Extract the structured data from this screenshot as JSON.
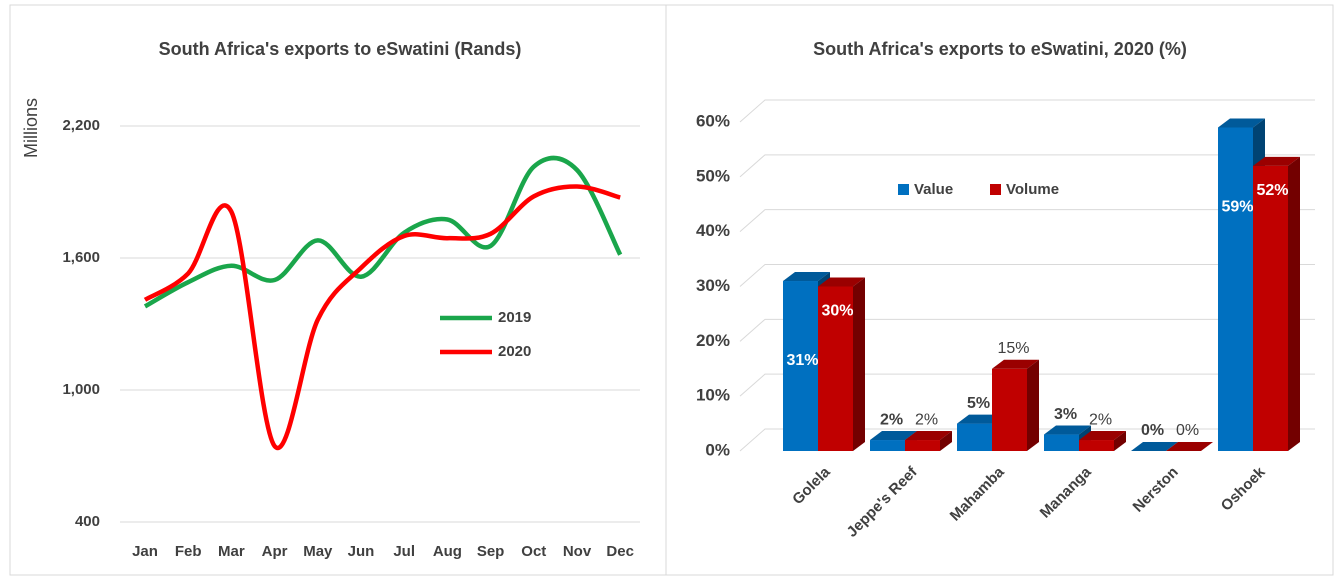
{
  "chart_data": [
    {
      "type": "line",
      "title": "South Africa's exports to eSwatini (Rands)",
      "y_label": "Millions",
      "categories": [
        "Jan",
        "Feb",
        "Mar",
        "Apr",
        "May",
        "Jun",
        "Jul",
        "Aug",
        "Sep",
        "Oct",
        "Nov",
        "Dec"
      ],
      "series": [
        {
          "name": "2019",
          "color": "#1aa64b",
          "values": [
            1380,
            1490,
            1565,
            1500,
            1680,
            1515,
            1715,
            1775,
            1655,
            2015,
            2000,
            1615
          ]
        },
        {
          "name": "2020",
          "color": "#ff0000",
          "values": [
            1410,
            1530,
            1810,
            745,
            1320,
            1555,
            1700,
            1690,
            1710,
            1880,
            1925,
            1875
          ]
        }
      ],
      "ylim": [
        400,
        2200
      ],
      "yticks": [
        400,
        {
          "value": 1000,
          "label": "1,000"
        },
        {
          "value": 1600,
          "label": "1,600"
        },
        {
          "value": 2200,
          "label": "2,200"
        }
      ],
      "grid": true
    },
    {
      "type": "bar3d",
      "title": "South Africa's exports to eSwatini, 2020 (%)",
      "categories": [
        "Golela",
        "Jeppe's Reef",
        "Mahamba",
        "Mananga",
        "Nerston",
        "Oshoek"
      ],
      "series": [
        {
          "name": "Value",
          "color": "#0070c0",
          "values": [
            31,
            2,
            5,
            3,
            0,
            59
          ],
          "value_labels": [
            "31%",
            "2%",
            "5%",
            "3%",
            "0%",
            "59%"
          ]
        },
        {
          "name": "Volume",
          "color": "#c00000",
          "values": [
            30,
            2,
            15,
            2,
            0,
            52
          ],
          "value_labels": [
            "30%",
            "2%",
            "15%",
            "2%",
            "0%",
            "52%"
          ]
        }
      ],
      "ylim": [
        0,
        60
      ],
      "yticks": [
        {
          "value": 0,
          "label": "0%"
        },
        {
          "value": 10,
          "label": "10%"
        },
        {
          "value": 20,
          "label": "20%"
        },
        {
          "value": 30,
          "label": "30%"
        },
        {
          "value": 40,
          "label": "40%"
        },
        {
          "value": 50,
          "label": "50%"
        },
        {
          "value": 60,
          "label": "60%"
        }
      ],
      "grid": true
    }
  ]
}
